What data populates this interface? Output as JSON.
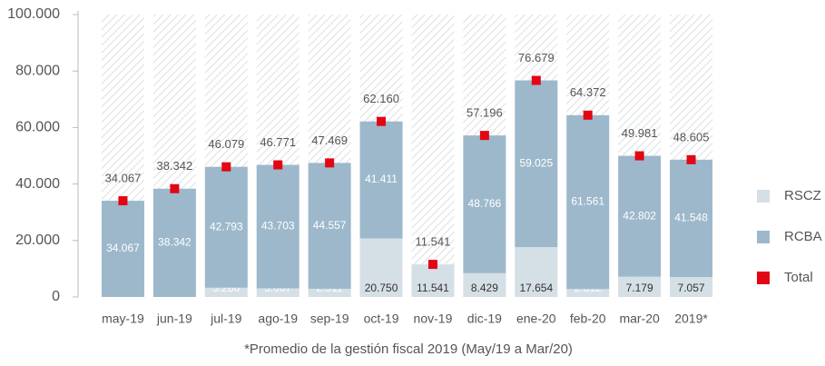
{
  "chart_data": {
    "type": "stacked_bar",
    "categories": [
      "may-19",
      "jun-19",
      "jul-19",
      "ago-19",
      "sep-19",
      "oct-19",
      "nov-19",
      "dic-19",
      "ene-20",
      "feb-20",
      "mar-20",
      "2019*"
    ],
    "series": [
      {
        "name": "RSCZ",
        "color": "#d5dfe6",
        "values": [
          null,
          null,
          3286,
          3067,
          2911,
          20750,
          11541,
          8429,
          17654,
          2812,
          7179,
          7057
        ],
        "value_labels": [
          null,
          null,
          "3.286",
          "3.067",
          "2.911",
          "20.750",
          "11.541",
          "8.429",
          "17.654",
          "2.812",
          "7.179",
          "7.057"
        ]
      },
      {
        "name": "RCBA",
        "color": "#9db8cb",
        "values": [
          34067,
          38342,
          42793,
          43703,
          44557,
          41411,
          null,
          48766,
          59025,
          61561,
          42802,
          41548
        ],
        "value_labels": [
          "34.067",
          "38.342",
          "42.793",
          "43.703",
          "44.557",
          "41.411",
          null,
          "48.766",
          "59.025",
          "61.561",
          "42.802",
          "41.548"
        ]
      },
      {
        "name": "Total",
        "color": "#e30613",
        "values": [
          34067,
          38342,
          46079,
          46771,
          47469,
          62160,
          11541,
          57196,
          76679,
          64372,
          49981,
          48605
        ],
        "value_labels": [
          "34.067",
          "38.342",
          "46.079",
          "46.771",
          "47.469",
          "62.160",
          "11.541",
          "57.196",
          "76.679",
          "64.372",
          "49.981",
          "48.605"
        ]
      }
    ],
    "ylim": [
      0,
      100000
    ],
    "yticks": [
      0,
      {
        "value": 20000,
        "label": "20.000"
      },
      {
        "value": 40000,
        "label": "40.000"
      },
      {
        "value": 60000,
        "label": "60.000"
      },
      {
        "value": 80000,
        "label": "80.000"
      },
      {
        "value": 100000,
        "label": "100.000"
      }
    ],
    "note": "*Promedio de la gestión fiscal 2019 (May/19 a Mar/20)",
    "legend": "right"
  }
}
